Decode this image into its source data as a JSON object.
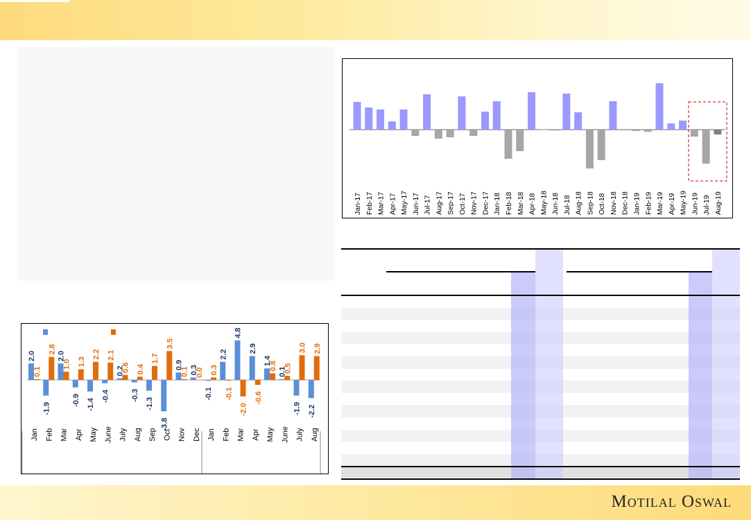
{
  "brand": {
    "name": "Motilal Oswal"
  },
  "colors": {
    "pos": "#9999ff",
    "neg": "#a6a6a6",
    "last": "#808080",
    "blue": "#5b8fd6",
    "orange": "#e36c0a",
    "blueLabel": "#1f3864",
    "orangeLabel": "#e36c0a",
    "highlight": "#c00000"
  },
  "chart_data": [
    {
      "type": "bar",
      "title": "",
      "categories": [
        "Jan-17",
        "Feb-17",
        "Mar-17",
        "Apr-17",
        "May-17",
        "Jun-17",
        "Jul-17",
        "Aug-17",
        "Sep-17",
        "Oct-17",
        "Nov-17",
        "Dec-17",
        "Jan-18",
        "Feb-18",
        "Mar-18",
        "Apr-18",
        "May-18",
        "Jun-18",
        "Jul-18",
        "Aug-18",
        "Sep-18",
        "Oct-18",
        "Nov-18",
        "Dec-18",
        "Jan-19",
        "Feb-19",
        "Mar-19",
        "Apr-19",
        "May-19",
        "Jun-19",
        "Jul-19",
        "Aug-19"
      ],
      "values": [
        40,
        32,
        29,
        12,
        29,
        -9,
        51,
        -13,
        -11,
        48,
        -9,
        26,
        41,
        -42,
        -31,
        54,
        0,
        -1.3,
        52,
        25,
        -56,
        -44,
        41,
        -1,
        -2,
        -3,
        67,
        9,
        13,
        -10,
        -49,
        -7
      ],
      "value_units": "relative (no axis shown)",
      "highlighted_range": [
        "Jun-19",
        "Aug-19"
      ]
    },
    {
      "type": "bar",
      "title": "",
      "categories": [
        "Jan",
        "Feb",
        "Mar",
        "Apr",
        "May",
        "June",
        "July",
        "Aug",
        "Sep",
        "Oct",
        "Nov",
        "Dec",
        "Jan",
        "Feb",
        "Mar",
        "Apr",
        "May",
        "June",
        "July",
        "Aug"
      ],
      "series": [
        {
          "name": "",
          "values": [
            2.0,
            -1.9,
            2.0,
            -0.9,
            -1.4,
            -0.4,
            0.2,
            -0.3,
            -1.3,
            -3.8,
            0.9,
            0.3,
            -0.1,
            2.2,
            4.8,
            2.9,
            1.4,
            0.1,
            -1.9,
            -2.2
          ]
        },
        {
          "name": "",
          "values": [
            0.1,
            2.8,
            1.0,
            1.3,
            2.2,
            2.1,
            0.6,
            0.4,
            1.7,
            3.5,
            0.1,
            0.0,
            0.3,
            -0.1,
            -2.0,
            -0.6,
            0.8,
            0.5,
            3.0,
            2.9
          ]
        }
      ],
      "data_labels": true
    }
  ],
  "table": {
    "rows": 14,
    "has_total_row": true
  }
}
